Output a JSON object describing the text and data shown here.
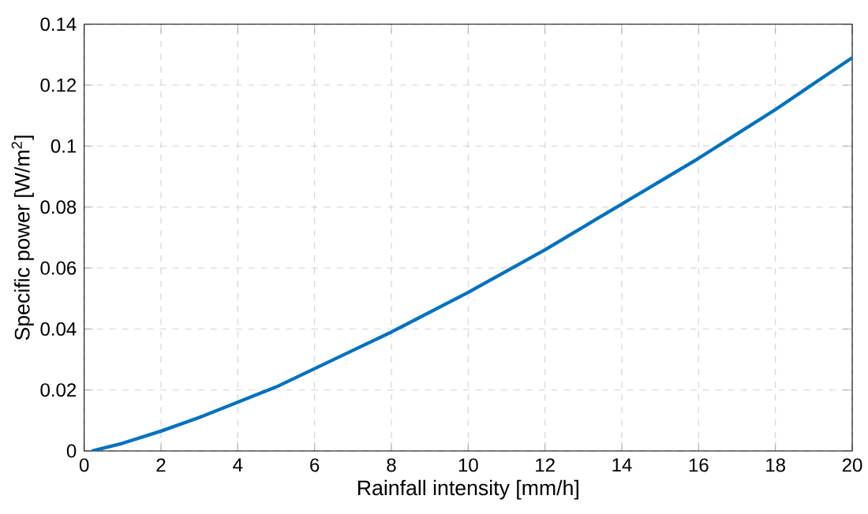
{
  "chart_data": {
    "type": "line",
    "xlabel": "Rainfall intensity [mm/h]",
    "ylabel": "Specific power [W/m$^{2}$]",
    "x": [
      0.2,
      1,
      2,
      3,
      4,
      5,
      6,
      7,
      8,
      9,
      10,
      11,
      12,
      13,
      14,
      15,
      16,
      17,
      18,
      19,
      20
    ],
    "series": [
      {
        "color": "#0072bd",
        "values": [
          0,
          0.0025,
          0.0065,
          0.011,
          0.016,
          0.021,
          0.027,
          0.033,
          0.039,
          0.0455,
          0.052,
          0.059,
          0.066,
          0.0735,
          0.081,
          0.0885,
          0.096,
          0.104,
          0.112,
          0.1205,
          0.129
        ]
      }
    ],
    "xlim": [
      0,
      20
    ],
    "ylim": [
      0,
      0.14
    ],
    "xticks": [
      0,
      2,
      4,
      6,
      8,
      10,
      12,
      14,
      16,
      18,
      20
    ],
    "yticks": [
      0,
      0.02,
      0.04,
      0.06,
      0.08,
      0.1,
      0.12,
      0.14
    ],
    "grid": true,
    "marker": "none",
    "line_style": "solid"
  }
}
